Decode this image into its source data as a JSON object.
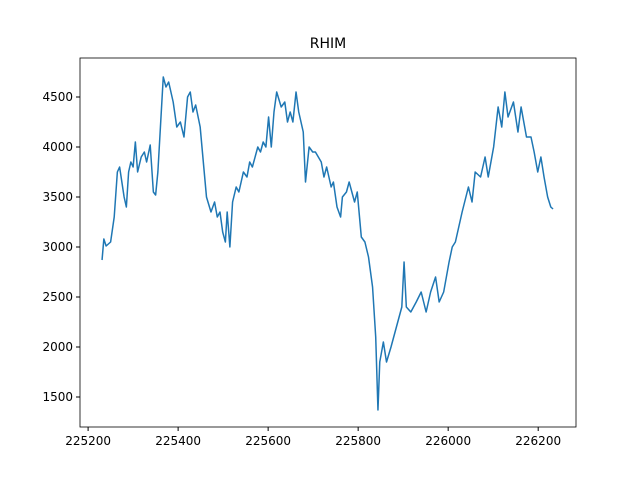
{
  "chart_data": {
    "type": "line",
    "title": "RHIM",
    "x": [
      225231,
      225235,
      225240,
      225250,
      225258,
      225265,
      225270,
      225280,
      225285,
      225290,
      225295,
      225300,
      225305,
      225310,
      225318,
      225325,
      225330,
      225338,
      225345,
      225350,
      225355,
      225367,
      225373,
      225379,
      225389,
      225397,
      225405,
      225413,
      225421,
      225427,
      225433,
      225439,
      225449,
      225457,
      225463,
      225473,
      225481,
      225487,
      225493,
      225499,
      225505,
      225509,
      225515,
      225521,
      225529,
      225535,
      225545,
      225553,
      225559,
      225565,
      225577,
      225583,
      225589,
      225595,
      225601,
      225607,
      225613,
      225619,
      225629,
      225637,
      225643,
      225649,
      225655,
      225662,
      225668,
      225678,
      225683,
      225691,
      225699,
      225705,
      225718,
      225724,
      225730,
      225740,
      225745,
      225753,
      225761,
      225765,
      225774,
      225780,
      225792,
      225798,
      225807,
      225815,
      225823,
      225832,
      225839,
      225844,
      225848,
      225856,
      225863,
      225873,
      225885,
      225897,
      225902,
      225907,
      225917,
      225929,
      225940,
      225951,
      225961,
      225972,
      225980,
      225990,
      226002,
      226009,
      226016,
      226031,
      226045,
      226053,
      226060,
      226072,
      226082,
      226089,
      226101,
      226111,
      226119,
      226126,
      226133,
      226145,
      226155,
      226162,
      226174,
      226184,
      226191,
      226199,
      226206,
      226213,
      226221,
      226228,
      226233
    ],
    "series": [
      {
        "name": "RHIM",
        "color": "#1f77b4",
        "values": [
          2870,
          3080,
          3010,
          3050,
          3300,
          3750,
          3800,
          3500,
          3400,
          3750,
          3850,
          3800,
          4050,
          3750,
          3900,
          3950,
          3850,
          4020,
          3550,
          3520,
          3750,
          4700,
          4600,
          4650,
          4450,
          4200,
          4250,
          4100,
          4500,
          4550,
          4350,
          4420,
          4200,
          3800,
          3500,
          3350,
          3450,
          3300,
          3350,
          3150,
          3050,
          3350,
          3000,
          3450,
          3600,
          3550,
          3750,
          3700,
          3850,
          3800,
          4000,
          3950,
          4050,
          4000,
          4300,
          4000,
          4350,
          4550,
          4400,
          4450,
          4250,
          4350,
          4250,
          4550,
          4350,
          4150,
          3650,
          4000,
          3950,
          3950,
          3850,
          3700,
          3800,
          3600,
          3650,
          3400,
          3300,
          3500,
          3550,
          3650,
          3450,
          3550,
          3100,
          3050,
          2900,
          2600,
          2100,
          1370,
          1850,
          2050,
          1850,
          2000,
          2200,
          2400,
          2850,
          2400,
          2350,
          2450,
          2550,
          2350,
          2550,
          2700,
          2450,
          2550,
          2850,
          3000,
          3050,
          3350,
          3600,
          3450,
          3750,
          3700,
          3900,
          3700,
          4000,
          4400,
          4200,
          4550,
          4300,
          4450,
          4150,
          4400,
          4100,
          4100,
          3950,
          3750,
          3900,
          3700,
          3500,
          3400,
          3380
        ]
      }
    ],
    "xlim": [
      225182,
      226284
    ],
    "ylim": [
      1200,
      4890
    ],
    "xticks": [
      225200,
      225400,
      225600,
      225800,
      226000,
      226200
    ],
    "yticks": [
      1500,
      2000,
      2500,
      3000,
      3500,
      4000,
      4500
    ]
  }
}
